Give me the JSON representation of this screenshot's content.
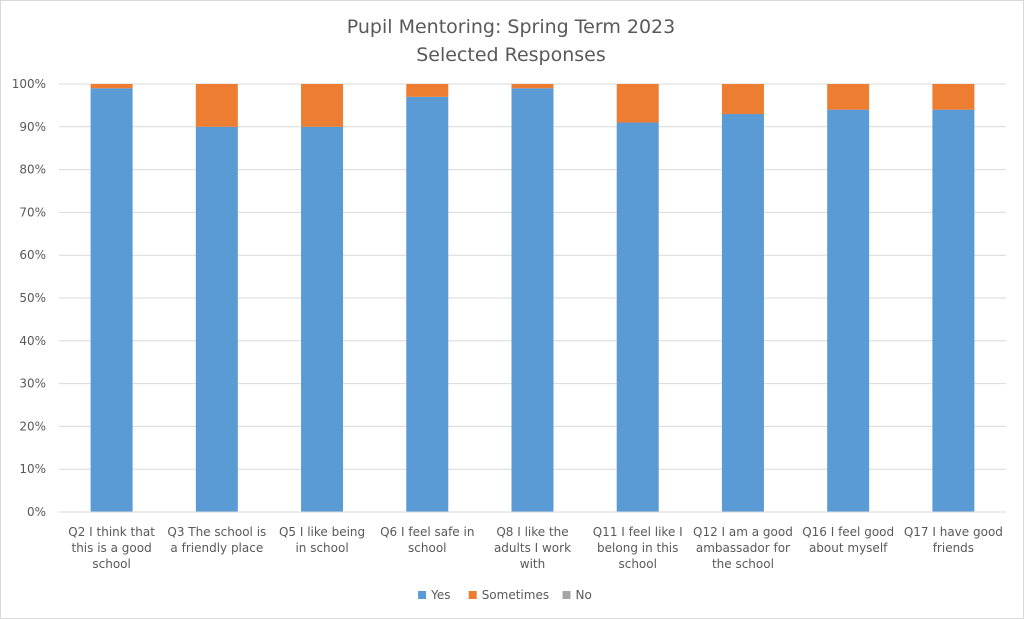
{
  "chart_data": {
    "type": "bar",
    "stacked": "percent",
    "title": [
      "Pupil Mentoring: Spring Term 2023",
      "Selected Responses"
    ],
    "categories": [
      [
        "Q2 I think that",
        "this is a good",
        "school"
      ],
      [
        "Q3 The school is",
        "a friendly place"
      ],
      [
        "Q5 I like being",
        "in school"
      ],
      [
        "Q6 I feel safe in",
        "school"
      ],
      [
        "Q8 I like the",
        "adults I work",
        "with"
      ],
      [
        "Q11 I feel like I",
        "belong in this",
        "school"
      ],
      [
        "Q12 I am a good",
        "ambassador for",
        "the school"
      ],
      [
        "Q16 I feel good",
        "about myself"
      ],
      [
        "Q17 I have good",
        "friends"
      ]
    ],
    "series": [
      {
        "name": "Yes",
        "color": "#5b9bd5",
        "values": [
          0.99,
          0.9,
          0.9,
          0.97,
          0.99,
          0.91,
          0.93,
          0.94,
          0.94
        ]
      },
      {
        "name": "Sometimes",
        "color": "#ed7d31",
        "values": [
          0.01,
          0.1,
          0.1,
          0.03,
          0.01,
          0.09,
          0.07,
          0.06,
          0.06
        ]
      },
      {
        "name": "No",
        "color": "#a5a5a5",
        "values": [
          0,
          0,
          0,
          0,
          0,
          0,
          0,
          0,
          0
        ]
      }
    ],
    "y_ticks": [
      "0%",
      "10%",
      "20%",
      "30%",
      "40%",
      "50%",
      "60%",
      "70%",
      "80%",
      "90%",
      "100%"
    ],
    "ylim": [
      0,
      1
    ],
    "grid": true,
    "legend_position": "bottom",
    "gridline_color": "#d9d9d9"
  }
}
